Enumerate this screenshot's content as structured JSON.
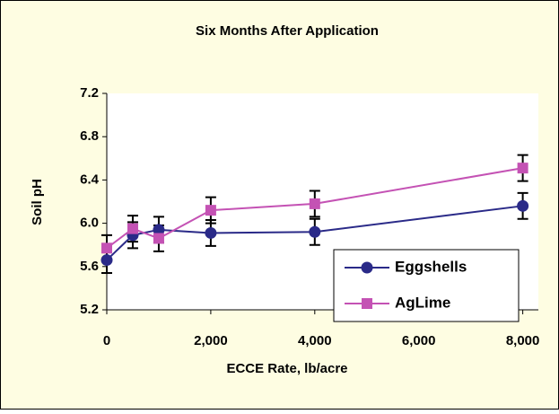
{
  "chart_data": {
    "type": "line",
    "title": "Six Months After Application",
    "xlabel": "ECCE Rate, lb/acre",
    "ylabel": "Soil pH",
    "x": [
      0,
      500,
      1000,
      2000,
      4000,
      8000
    ],
    "series": [
      {
        "name": "Eggshells",
        "color": "#2a2a88",
        "marker": "circle",
        "values": [
          5.66,
          5.89,
          5.94,
          5.91,
          5.92,
          6.16
        ],
        "errors": [
          0.12,
          0.12,
          0.12,
          0.12,
          0.12,
          0.12
        ]
      },
      {
        "name": "AgLime",
        "color": "#c452b4",
        "marker": "square",
        "values": [
          5.77,
          5.95,
          5.86,
          6.12,
          6.18,
          6.51
        ],
        "errors": [
          0.12,
          0.12,
          0.12,
          0.12,
          0.12,
          0.12
        ]
      }
    ],
    "xlim": [
      0,
      8300
    ],
    "xticks": [
      0,
      {
        "value": 2000,
        "label": "2,000"
      },
      {
        "value": 4000,
        "label": "4,000"
      },
      {
        "value": 6000,
        "label": "6,000"
      },
      {
        "value": 8000,
        "label": "8,000"
      }
    ],
    "ylim": [
      5.2,
      7.2
    ],
    "yticks": [
      5.2,
      5.6,
      {
        "value": 6,
        "label": "6.0"
      },
      6.4,
      6.8,
      7.2
    ],
    "legend": "lower right"
  }
}
